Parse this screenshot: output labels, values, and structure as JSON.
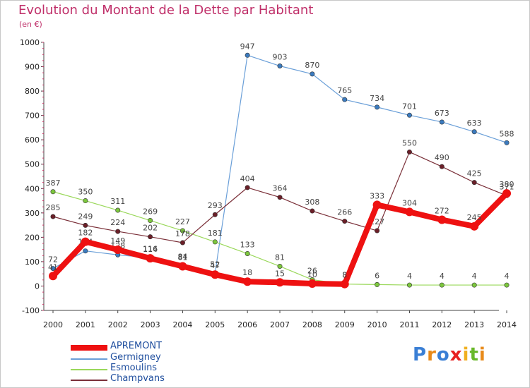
{
  "chart_data": {
    "type": "line",
    "title": "Evolution du Montant de la Dette par Habitant",
    "subtitle": "(en €)",
    "categories": [
      "2000",
      "2001",
      "2002",
      "2003",
      "2004",
      "2005",
      "2006",
      "2007",
      "2008",
      "2009",
      "2010",
      "2011",
      "2012",
      "2013",
      "2014"
    ],
    "ylim": [
      -100,
      1000
    ],
    "yticks": [
      -100,
      0,
      100,
      200,
      300,
      400,
      500,
      600,
      700,
      800,
      900,
      1000
    ],
    "grid": false,
    "legend_position": "bottom-left",
    "series": [
      {
        "name": "Germigney",
        "color": "#6a9fd8",
        "marker": "#3b7bbf",
        "width": 1.2,
        "values": [
          72,
          144,
          128,
          116,
          84,
          52,
          947,
          903,
          870,
          765,
          734,
          701,
          673,
          633,
          588
        ]
      },
      {
        "name": "Esmoulins",
        "color": "#9ad85a",
        "marker": "#7cc73d",
        "width": 1.2,
        "values": [
          387,
          350,
          311,
          269,
          227,
          181,
          133,
          81,
          26,
          8,
          6,
          4,
          4,
          4,
          4
        ]
      },
      {
        "name": "Champvans",
        "color": "#7a2f38",
        "marker": "#6b1f28",
        "width": 1.2,
        "values": [
          285,
          249,
          224,
          202,
          178,
          293,
          404,
          364,
          308,
          266,
          227,
          550,
          490,
          425,
          371
        ]
      },
      {
        "name": "APREMONT",
        "color": "#ee1111",
        "marker": "#ee1111",
        "width": 8,
        "values": [
          41,
          182,
          149,
          114,
          81,
          47,
          18,
          15,
          10,
          8,
          333,
          304,
          272,
          245,
          380
        ]
      }
    ],
    "legend_order": [
      "APREMONT",
      "Germigney",
      "Esmoulins",
      "Champvans"
    ]
  },
  "logo": {
    "text": "Proxiti"
  }
}
